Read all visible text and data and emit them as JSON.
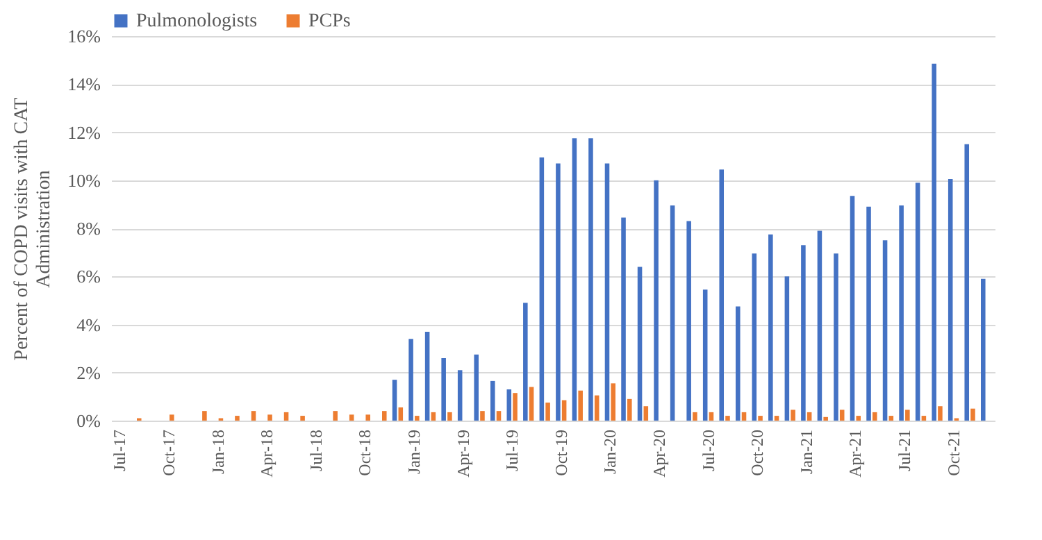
{
  "chart_data": {
    "type": "bar",
    "ylabel": "Percent of COPD visits with CAT Administration",
    "categories": [
      "Jul-17",
      null,
      null,
      "Oct-17",
      null,
      null,
      "Jan-18",
      null,
      null,
      "Apr-18",
      null,
      null,
      "Jul-18",
      null,
      null,
      "Oct-18",
      null,
      null,
      "Jan-19",
      null,
      null,
      "Apr-19",
      null,
      null,
      "Jul-19",
      null,
      null,
      "Oct-19",
      null,
      null,
      "Jan-20",
      null,
      null,
      "Apr-20",
      null,
      null,
      "Jul-20",
      null,
      null,
      "Oct-20",
      null,
      null,
      "Jan-21",
      null,
      null,
      "Apr-21",
      null,
      null,
      "Jul-21",
      null,
      null,
      "Oct-21",
      null,
      null
    ],
    "series": [
      {
        "name": "Pulmonologists",
        "color": "#4472c4",
        "values": [
          0,
          0,
          0,
          0,
          0,
          0,
          0,
          0,
          0,
          0,
          0,
          0,
          0,
          0,
          0,
          0,
          0,
          1.7,
          3.4,
          3.7,
          2.6,
          2.1,
          2.75,
          1.65,
          1.3,
          4.9,
          10.95,
          10.7,
          11.75,
          11.75,
          10.7,
          8.45,
          6.4,
          10.0,
          8.95,
          8.3,
          5.45,
          10.45,
          4.75,
          6.95,
          7.75,
          6.0,
          7.3,
          7.9,
          6.95,
          9.35,
          8.9,
          7.5,
          8.95,
          9.9,
          14.85,
          10.05,
          11.5,
          5.9
        ]
      },
      {
        "name": "PCPs",
        "color": "#ed7d31",
        "values": [
          0,
          0.1,
          0,
          0.25,
          0,
          0.4,
          0.1,
          0.2,
          0.4,
          0.25,
          0.35,
          0.2,
          0,
          0.4,
          0.25,
          0.25,
          0.4,
          0.55,
          0.2,
          0.35,
          0.35,
          0,
          0.4,
          0.4,
          1.15,
          1.4,
          0.75,
          0.85,
          1.25,
          1.05,
          1.55,
          0.9,
          0.6,
          0,
          0,
          0.35,
          0.35,
          0.2,
          0.35,
          0.2,
          0.2,
          0.45,
          0.35,
          0.15,
          0.45,
          0.2,
          0.35,
          0.2,
          0.45,
          0.2,
          0.6,
          0.1,
          0.5,
          0
        ]
      }
    ],
    "ylim": [
      0,
      16
    ],
    "yticks": [
      {
        "value": 0,
        "label": "0%"
      },
      {
        "value": 2,
        "label": "2%"
      },
      {
        "value": 4,
        "label": "4%"
      },
      {
        "value": 6,
        "label": "6%"
      },
      {
        "value": 8,
        "label": "8%"
      },
      {
        "value": 10,
        "label": "10%"
      },
      {
        "value": 12,
        "label": "12%"
      },
      {
        "value": 14,
        "label": "14%"
      },
      {
        "value": 16,
        "label": "16%"
      }
    ],
    "grid": "y",
    "legend": "top"
  }
}
